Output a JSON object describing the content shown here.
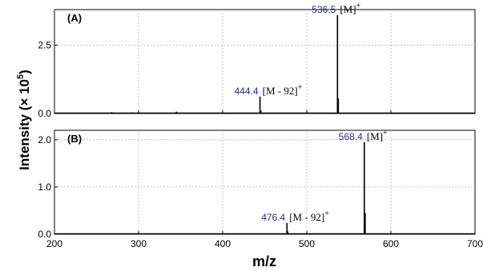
{
  "chart_data": {
    "type": "bar",
    "xlabel": "m/z",
    "ylabel": "Intensity (× 10",
    "ylabel_sup": "5",
    "ylabel_end": ")",
    "xlim": [
      200,
      700
    ],
    "x_ticks": [
      "200",
      "300",
      "400",
      "500",
      "600",
      "700"
    ],
    "grid": true,
    "label_color": "#1f2f8f",
    "panels": [
      {
        "label": "(A)",
        "ylim": [
          0,
          3.8
        ],
        "y_ticks": [
          {
            "v": 0,
            "t": "0.0"
          },
          {
            "v": 2.5,
            "t": "2.5"
          }
        ],
        "peaks": [
          {
            "x": 444.4,
            "y": 0.62
          },
          {
            "x": 536.5,
            "y": 3.6
          },
          {
            "x": 537.5,
            "y": 0.55
          },
          {
            "x": 445.4,
            "y": 0.1
          },
          {
            "x": 345,
            "y": 0.07
          },
          {
            "x": 268,
            "y": 0.05
          },
          {
            "x": 292,
            "y": 0.04
          }
        ],
        "annotations": [
          {
            "x": 444.4,
            "y": 0.62,
            "value": "444.4",
            "ion": "[M - 92]",
            "sup": "+"
          },
          {
            "x": 536.5,
            "y": 3.6,
            "value": "536.5",
            "ion": "[M]",
            "sup": "+"
          }
        ]
      },
      {
        "label": "(B)",
        "ylim": [
          0,
          2.2
        ],
        "y_ticks": [
          {
            "v": 0,
            "t": "0.0"
          },
          {
            "v": 1.0,
            "t": "1.0"
          },
          {
            "v": 2.0,
            "t": "2.0"
          }
        ],
        "peaks": [
          {
            "x": 476.4,
            "y": 0.24
          },
          {
            "x": 568.4,
            "y": 1.95
          },
          {
            "x": 569.4,
            "y": 0.45
          },
          {
            "x": 477.4,
            "y": 0.06
          }
        ],
        "annotations": [
          {
            "x": 476.4,
            "y": 0.24,
            "value": "476.4",
            "ion": "[M - 92]",
            "sup": "+"
          },
          {
            "x": 568.4,
            "y": 1.95,
            "value": "568.4",
            "ion": "[M]",
            "sup": "+"
          }
        ]
      }
    ]
  }
}
